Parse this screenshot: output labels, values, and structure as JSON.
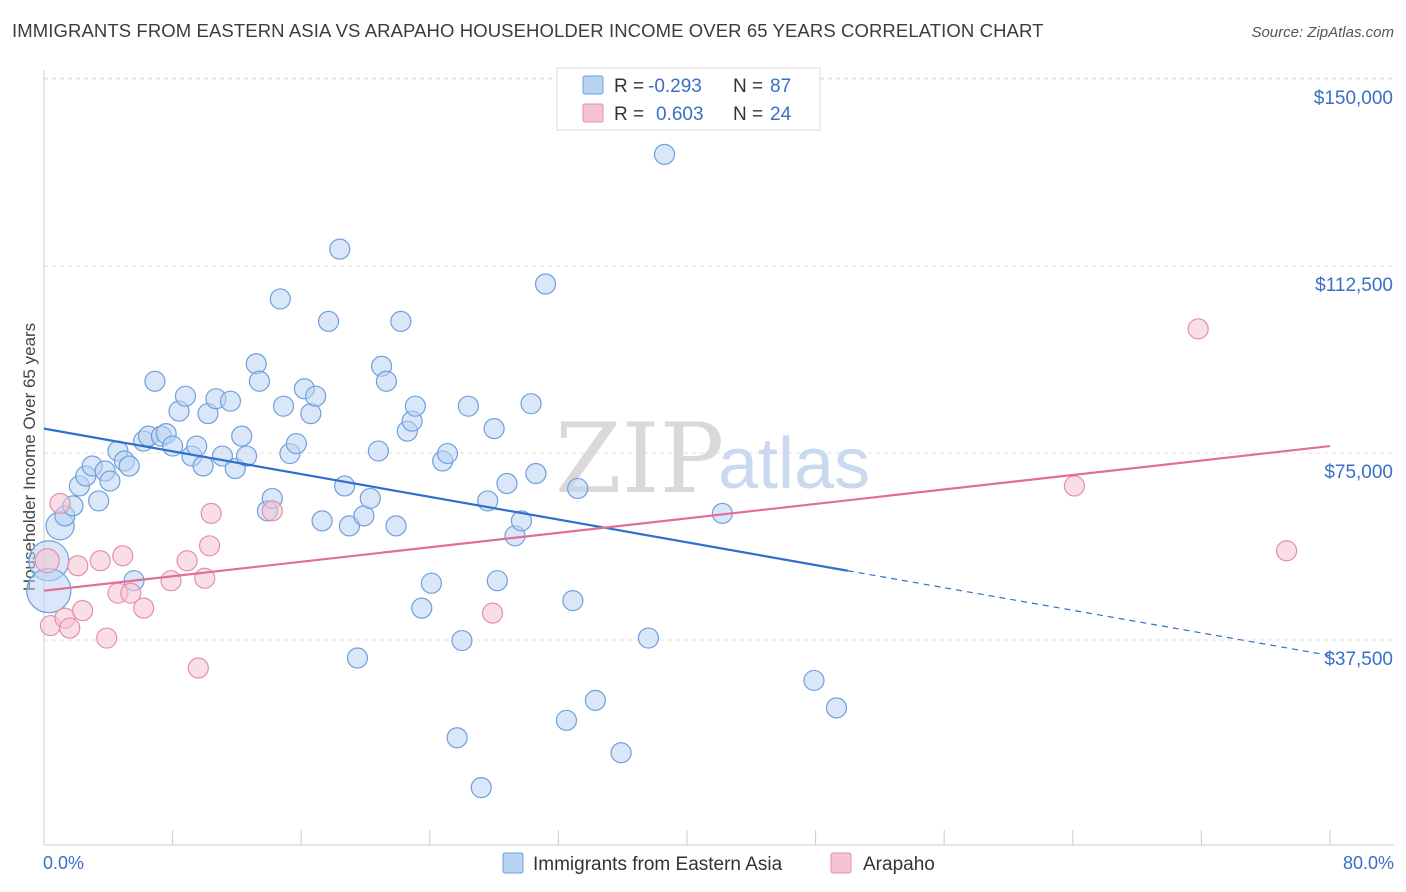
{
  "header": {
    "title": "IMMIGRANTS FROM EASTERN ASIA VS ARAPAHO HOUSEHOLDER INCOME OVER 65 YEARS CORRELATION CHART",
    "source": "Source: ZipAtlas.com"
  },
  "legend": {
    "rows": [
      {
        "r_label": "R = ",
        "r_value": "-0.293",
        "n_label": "N = ",
        "n_value": "87"
      },
      {
        "r_label": "R = ",
        "r_value": "0.603",
        "n_label": "N = ",
        "n_value": "24"
      }
    ]
  },
  "watermark": {
    "zip": "ZIP",
    "atlas": "atlas"
  },
  "axes": {
    "ylabel": "Householder Income Over 65 years",
    "yticks": [
      "$150,000",
      "$112,500",
      "$75,000",
      "$37,500"
    ],
    "x_start": "0.0%",
    "x_end": "80.0%"
  },
  "colors": {
    "blue_fill": "#b9d3f3",
    "blue_stroke": "#6f9fdc",
    "blue_line": "#2e6fcf",
    "pink_fill": "#f6c3d3",
    "pink_stroke": "#e58fab",
    "pink_line": "#e06e95"
  },
  "chart_data": {
    "type": "scatter",
    "x_unit": "%",
    "xlim": [
      0,
      80
    ],
    "ylim": [
      0,
      155000
    ],
    "grid": true,
    "series": [
      {
        "name": "Immigrants from Eastern Asia",
        "color": "#b9d3f3",
        "points": [
          [
            0.3,
            57000,
            20
          ],
          [
            0.3,
            51000,
            22
          ],
          [
            1.0,
            64000,
            14
          ],
          [
            1.3,
            66000,
            10
          ],
          [
            1.8,
            68000,
            10
          ],
          [
            2.2,
            72000,
            10
          ],
          [
            2.6,
            74000,
            10
          ],
          [
            3.0,
            76000,
            10
          ],
          [
            3.4,
            69000,
            10
          ],
          [
            3.8,
            75000,
            10
          ],
          [
            4.1,
            73000,
            10
          ],
          [
            4.6,
            79000,
            10
          ],
          [
            5.0,
            77000,
            10
          ],
          [
            5.3,
            76000,
            10
          ],
          [
            5.6,
            53000,
            10
          ],
          [
            6.2,
            81000,
            10
          ],
          [
            6.5,
            82000,
            10
          ],
          [
            6.9,
            93000,
            10
          ],
          [
            7.3,
            82000,
            10
          ],
          [
            7.6,
            82500,
            10
          ],
          [
            8.0,
            80000,
            10
          ],
          [
            8.4,
            87000,
            10
          ],
          [
            8.8,
            90000,
            10
          ],
          [
            9.2,
            78000,
            10
          ],
          [
            9.5,
            80000,
            10
          ],
          [
            9.9,
            76000,
            10
          ],
          [
            10.2,
            86500,
            10
          ],
          [
            10.7,
            89500,
            10
          ],
          [
            11.1,
            78000,
            10
          ],
          [
            11.6,
            89000,
            10
          ],
          [
            11.9,
            75500,
            10
          ],
          [
            12.3,
            82000,
            10
          ],
          [
            12.6,
            78000,
            10
          ],
          [
            13.2,
            96500,
            10
          ],
          [
            13.4,
            93000,
            10
          ],
          [
            13.9,
            67000,
            10
          ],
          [
            14.2,
            69500,
            10
          ],
          [
            14.7,
            109500,
            10
          ],
          [
            14.9,
            88000,
            10
          ],
          [
            15.3,
            78500,
            10
          ],
          [
            15.7,
            80500,
            10
          ],
          [
            16.2,
            91500,
            10
          ],
          [
            16.6,
            86500,
            10
          ],
          [
            16.9,
            90000,
            10
          ],
          [
            17.3,
            65000,
            10
          ],
          [
            17.7,
            105000,
            10
          ],
          [
            18.4,
            119500,
            10
          ],
          [
            18.7,
            72000,
            10
          ],
          [
            19.0,
            64000,
            10
          ],
          [
            19.5,
            37500,
            10
          ],
          [
            19.9,
            66000,
            10
          ],
          [
            20.3,
            69500,
            10
          ],
          [
            20.8,
            79000,
            10
          ],
          [
            21.0,
            96000,
            10
          ],
          [
            21.3,
            93000,
            10
          ],
          [
            21.9,
            64000,
            10
          ],
          [
            22.2,
            105000,
            10
          ],
          [
            22.6,
            83000,
            10
          ],
          [
            22.9,
            85000,
            10
          ],
          [
            23.1,
            88000,
            10
          ],
          [
            23.5,
            47500,
            10
          ],
          [
            24.1,
            52500,
            10
          ],
          [
            24.8,
            77000,
            10
          ],
          [
            25.1,
            78500,
            10
          ],
          [
            25.7,
            21500,
            10
          ],
          [
            26.0,
            41000,
            10
          ],
          [
            26.4,
            88000,
            10
          ],
          [
            27.2,
            11500,
            10
          ],
          [
            27.6,
            69000,
            10
          ],
          [
            28.0,
            83500,
            10
          ],
          [
            28.2,
            53000,
            10
          ],
          [
            28.8,
            72500,
            10
          ],
          [
            29.3,
            62000,
            10
          ],
          [
            29.7,
            65000,
            10
          ],
          [
            30.3,
            88500,
            10
          ],
          [
            30.6,
            74500,
            10
          ],
          [
            31.2,
            112500,
            10
          ],
          [
            32.5,
            25000,
            10
          ],
          [
            32.9,
            49000,
            10
          ],
          [
            33.2,
            71500,
            10
          ],
          [
            34.3,
            29000,
            10
          ],
          [
            35.9,
            18500,
            10
          ],
          [
            37.6,
            41500,
            10
          ],
          [
            38.6,
            138500,
            10
          ],
          [
            42.2,
            66500,
            10
          ],
          [
            47.9,
            33000,
            10
          ],
          [
            49.3,
            27500,
            10
          ]
        ],
        "trend": {
          "x": [
            0,
            50
          ],
          "y": [
            83500,
            55000
          ]
        },
        "trend_extension": {
          "x": [
            50,
            80
          ],
          "y": [
            55000,
            38000
          ]
        }
      },
      {
        "name": "Arapaho",
        "color": "#f6c3d3",
        "points": [
          [
            0.2,
            57000,
            12
          ],
          [
            0.4,
            44000,
            10
          ],
          [
            1.0,
            68500,
            10
          ],
          [
            1.3,
            45500,
            10
          ],
          [
            1.6,
            43500,
            10
          ],
          [
            2.1,
            56000,
            10
          ],
          [
            2.4,
            47000,
            10
          ],
          [
            3.5,
            57000,
            10
          ],
          [
            3.9,
            41500,
            10
          ],
          [
            4.6,
            50500,
            10
          ],
          [
            4.9,
            58000,
            10
          ],
          [
            5.4,
            50500,
            10
          ],
          [
            6.2,
            47500,
            10
          ],
          [
            7.9,
            53000,
            10
          ],
          [
            8.9,
            57000,
            10
          ],
          [
            9.6,
            35500,
            10
          ],
          [
            10.0,
            53500,
            10
          ],
          [
            10.3,
            60000,
            10
          ],
          [
            10.4,
            66500,
            10
          ],
          [
            14.2,
            67000,
            10
          ],
          [
            27.9,
            46500,
            10
          ],
          [
            64.1,
            72000,
            10
          ],
          [
            71.8,
            103500,
            10
          ],
          [
            77.3,
            59000,
            10
          ]
        ],
        "trend": {
          "x": [
            0,
            80
          ],
          "y": [
            51000,
            80000
          ]
        }
      }
    ]
  }
}
